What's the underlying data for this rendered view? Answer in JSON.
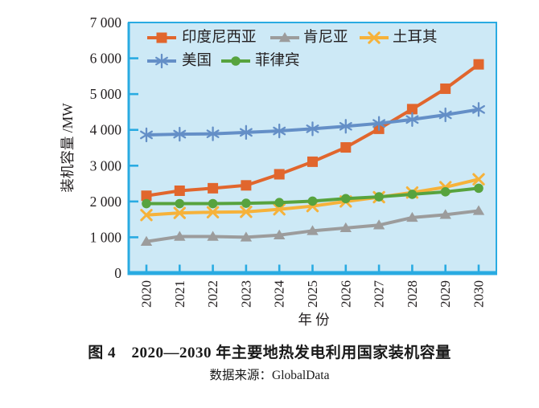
{
  "figure": {
    "caption": "图 4　2020—2030 年主要地热发电利用国家装机容量",
    "source": "数据来源：GlobalData"
  },
  "chart_data": {
    "type": "line",
    "title": "",
    "xlabel": "年  份",
    "ylabel": "装机容量 /MW",
    "x": [
      2020,
      2021,
      2022,
      2023,
      2024,
      2025,
      2026,
      2027,
      2028,
      2029,
      2030
    ],
    "ylim": [
      0,
      7000
    ],
    "ytick_interval": 1000,
    "ytick_labels": [
      "0",
      "1 000",
      "2 000",
      "3 000",
      "4 000",
      "5 000",
      "6 000",
      "7 000"
    ],
    "grid": false,
    "legend_position": "top-left-inside",
    "legend_rows": [
      [
        "印度尼西亚",
        "肯尼亚",
        "土耳其"
      ],
      [
        "美国",
        "菲律宾"
      ]
    ],
    "plot_bg": "#cde9f6",
    "axis_color": "#29abe2",
    "text_color": "#231f20",
    "series": [
      {
        "name": "印度尼西亚",
        "color": "#e1662d",
        "marker": "square",
        "values": [
          2160,
          2300,
          2370,
          2450,
          2760,
          3110,
          3510,
          4030,
          4580,
          5150,
          5830
        ]
      },
      {
        "name": "肯尼亚",
        "color": "#9c9c9c",
        "marker": "triangle",
        "values": [
          880,
          1020,
          1020,
          1000,
          1060,
          1180,
          1260,
          1340,
          1550,
          1630,
          1740
        ]
      },
      {
        "name": "土耳其",
        "color": "#f6b23a",
        "marker": "x",
        "values": [
          1620,
          1680,
          1700,
          1710,
          1780,
          1870,
          2000,
          2120,
          2250,
          2400,
          2620
        ]
      },
      {
        "name": "美国",
        "color": "#648fc7",
        "marker": "asterisk",
        "values": [
          3860,
          3880,
          3890,
          3930,
          3970,
          4030,
          4100,
          4180,
          4290,
          4420,
          4570
        ]
      },
      {
        "name": "菲律宾",
        "color": "#57a33e",
        "marker": "circle",
        "values": [
          1940,
          1940,
          1940,
          1950,
          1970,
          2010,
          2080,
          2130,
          2200,
          2270,
          2370
        ]
      }
    ]
  }
}
